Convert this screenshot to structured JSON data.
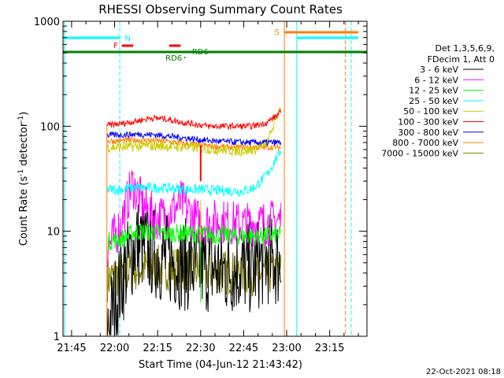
{
  "chart_data": {
    "type": "line",
    "title": "RHESSI Observing Summary Count Rates",
    "xlabel": "Start Time (04-Jun-12 21:43:42)",
    "ylabel_main": "Count Rate (s",
    "ylabel_sup1": "-1",
    "ylabel_mid": " detector",
    "ylabel_sup2": "-1",
    "ylabel_end": ")",
    "yscale": "log",
    "ylim": [
      1,
      1000
    ],
    "xlim_minutes": [
      -18,
      88
    ],
    "x_ticks": [
      {
        "label": "21:45",
        "min": -15
      },
      {
        "label": "22:00",
        "min": 0
      },
      {
        "label": "22:15",
        "min": 15
      },
      {
        "label": "22:30",
        "min": 30
      },
      {
        "label": "22:45",
        "min": 45
      },
      {
        "label": "23:00",
        "min": 60
      },
      {
        "label": "23:15",
        "min": 75
      }
    ],
    "y_ticks": [
      {
        "label": "1",
        "value": 1
      },
      {
        "label": "10",
        "value": 10
      },
      {
        "label": "100",
        "value": 100
      },
      {
        "label": "1000",
        "value": 1000
      }
    ],
    "legend_header": [
      "Det 1,3,5,6,9,",
      "FDecim 1, Att 0"
    ],
    "legend_position": "right",
    "series": [
      {
        "name": "3 - 6 keV",
        "color": "#000000",
        "start": -2.5,
        "end": 58,
        "values": [
          1.2,
          3.5,
          8,
          6.5,
          5.5,
          5,
          4.5,
          4.6,
          4.2,
          4.5,
          4.4,
          5.5,
          5
        ]
      },
      {
        "name": "6 - 12 keV",
        "color": "#ff00ff",
        "start": -2.5,
        "end": 58,
        "values": [
          7,
          11,
          28,
          17,
          13,
          15,
          19,
          13,
          12,
          12.5,
          12,
          11.5,
          12,
          12,
          13
        ]
      },
      {
        "name": "12 - 25 keV",
        "color": "#00ff00",
        "start": -2.5,
        "end": 58,
        "values": [
          8,
          8.5,
          10,
          9.8,
          9.5,
          9.6,
          9.5,
          9.3,
          9.2,
          9,
          9,
          9.1,
          9.2
        ]
      },
      {
        "name": "25 - 50 keV",
        "color": "#00ffff",
        "start": -2.5,
        "end": 58,
        "values": [
          25,
          25,
          26,
          26,
          26,
          25.5,
          25,
          25,
          24.5,
          24.5,
          24,
          26,
          35,
          60
        ]
      },
      {
        "name": "50 - 100 keV",
        "color": "#cccc00",
        "start": -2.5,
        "end": 58,
        "values": [
          63,
          63,
          64,
          65,
          65,
          64,
          63,
          62,
          60,
          59,
          58,
          60,
          70,
          160
        ]
      },
      {
        "name": "100 - 300 keV",
        "color": "#ff0000",
        "start": -2.5,
        "end": 58,
        "values": [
          102,
          106,
          112,
          120,
          118,
          110,
          105,
          100,
          100,
          100,
          100,
          108,
          135
        ]
      },
      {
        "name": "300 - 800 keV",
        "color": "#0000ff",
        "start": -2.5,
        "end": 58,
        "values": [
          82,
          83,
          84,
          83,
          80,
          77,
          74,
          72,
          71,
          70,
          70,
          70
        ]
      },
      {
        "name": "800 - 7000 keV",
        "color": "#ff8000",
        "start": -2.5,
        "end": 58,
        "values": [
          72,
          73,
          74,
          73,
          71,
          68,
          66,
          64,
          63,
          63,
          63,
          63
        ]
      },
      {
        "name": "7000 - 15000 keV",
        "color": "#808000",
        "start": -2.5,
        "end": 58,
        "values": [
          3.5,
          4,
          4.5,
          4.5,
          4.5,
          4.4,
          4.2,
          4.1,
          4,
          4,
          4,
          4.1
        ]
      }
    ],
    "annotations": [
      {
        "label": "N",
        "color": "#00ffff"
      },
      {
        "label": "F",
        "color": "#ff0000"
      },
      {
        "label": "S",
        "color": "#ff8000"
      },
      {
        "label": "RD6",
        "color": "#008000"
      },
      {
        "label": "RD6",
        "color": "#008000"
      }
    ],
    "footer_timestamp": "22-Oct-2021 08:18"
  }
}
